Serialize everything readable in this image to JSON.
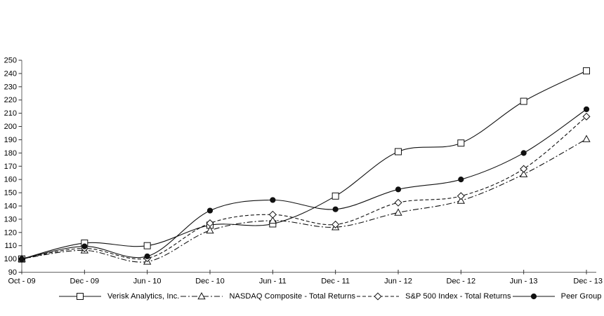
{
  "page": {
    "background": "#ffffff"
  },
  "chart_data": {
    "type": "line",
    "title": "",
    "xlabel": "",
    "ylabel": "",
    "categories": [
      "Oct - 09",
      "Dec - 09",
      "Jun - 10",
      "Dec - 10",
      "Jun - 11",
      "Dec - 11",
      "Jun - 12",
      "Dec - 12",
      "Jun - 13",
      "Dec - 13"
    ],
    "ylim": [
      90,
      250
    ],
    "ytick_step": 10,
    "grid": false,
    "legend_position": "bottom",
    "axis_color": "#666666",
    "tick_color": "#333333",
    "text_color": "#000000",
    "series_color": "#111111",
    "series": [
      {
        "name": "Verisk Analytics, Inc.",
        "marker": "square-open-icon",
        "line_style": "solid",
        "values": [
          100,
          112,
          110,
          125.5,
          126.5,
          147.5,
          181,
          187.5,
          219,
          242
        ]
      },
      {
        "name": "NASDAQ Composite - Total Returns",
        "marker": "triangle-open-icon",
        "line_style": "dash-dot",
        "values": [
          100,
          106.5,
          98,
          121.5,
          129,
          124,
          135,
          144,
          164,
          190.5
        ]
      },
      {
        "name": "S&P 500 Index - Total Returns",
        "marker": "diamond-open-icon",
        "line_style": "dashed",
        "values": [
          100,
          108,
          100.5,
          127,
          133.5,
          126,
          142.5,
          147.5,
          168,
          207.5
        ]
      },
      {
        "name": "Peer Group",
        "marker": "circle-filled-icon",
        "line_style": "solid",
        "values": [
          100,
          109.5,
          102,
          136.5,
          144.5,
          137.5,
          152.5,
          160,
          180,
          213
        ]
      }
    ]
  }
}
